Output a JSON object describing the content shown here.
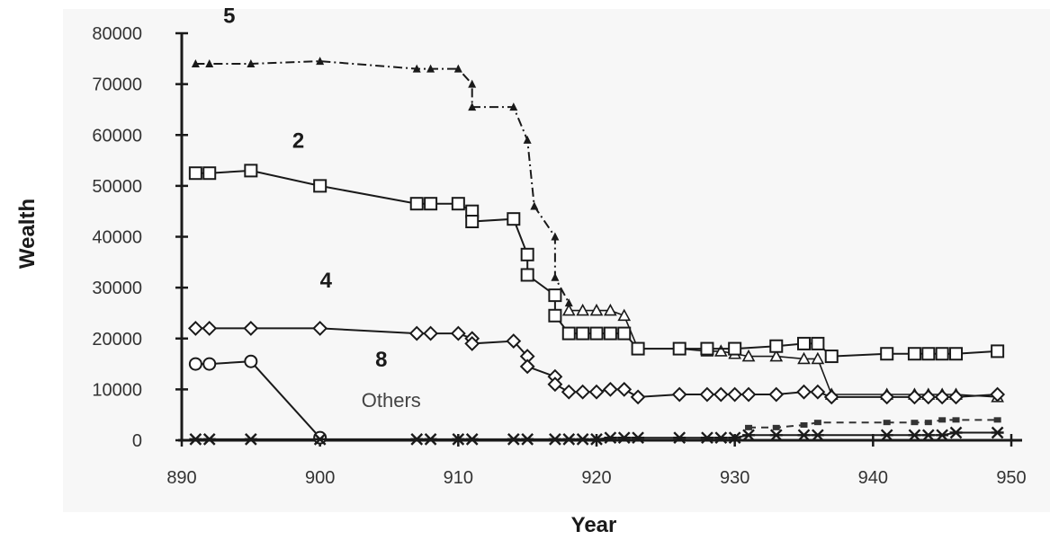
{
  "chart_data": {
    "type": "line",
    "title": "",
    "xlabel": "Year",
    "ylabel": "Wealth",
    "xlim": [
      890,
      950
    ],
    "ylim": [
      0,
      80000
    ],
    "x_ticks": [
      890,
      900,
      910,
      920,
      930,
      940,
      950
    ],
    "y_ticks": [
      0,
      10000,
      20000,
      30000,
      40000,
      50000,
      60000,
      70000,
      80000
    ],
    "grid": false,
    "legend": "none",
    "series": [
      {
        "name": "5",
        "marker": "triangle-filled",
        "color": "#1a1a1a",
        "points": [
          [
            891,
            74000
          ],
          [
            892,
            74000
          ],
          [
            895,
            74000
          ],
          [
            900,
            74500
          ],
          [
            907,
            73000
          ],
          [
            908,
            73000
          ],
          [
            910,
            73000
          ],
          [
            911,
            70000
          ],
          [
            911,
            65500
          ],
          [
            914,
            65500
          ],
          [
            915,
            59000
          ],
          [
            915.5,
            46000
          ],
          [
            917,
            40000
          ],
          [
            917,
            32000
          ],
          [
            918,
            27000
          ]
        ]
      },
      {
        "name": "",
        "marker": "triangle-open",
        "color": "#1a1a1a",
        "points": [
          [
            918,
            25500
          ],
          [
            919,
            25500
          ],
          [
            920,
            25500
          ],
          [
            921,
            25500
          ],
          [
            922,
            24500
          ],
          [
            923,
            18000
          ],
          [
            926,
            18000
          ],
          [
            928,
            17500
          ],
          [
            929,
            17500
          ],
          [
            930,
            17000
          ],
          [
            931,
            16500
          ],
          [
            933,
            16500
          ],
          [
            935,
            16000
          ],
          [
            936,
            16000
          ],
          [
            937,
            9000
          ],
          [
            941,
            9000
          ],
          [
            943,
            9000
          ],
          [
            944,
            9000
          ],
          [
            945,
            9000
          ],
          [
            946,
            9000
          ],
          [
            949,
            8500
          ]
        ]
      },
      {
        "name": "2",
        "marker": "square-open",
        "color": "#1a1a1a",
        "points": [
          [
            891,
            52500
          ],
          [
            892,
            52500
          ],
          [
            895,
            53000
          ],
          [
            900,
            50000
          ],
          [
            907,
            46500
          ],
          [
            908,
            46500
          ],
          [
            910,
            46500
          ],
          [
            911,
            45000
          ],
          [
            911,
            43000
          ],
          [
            914,
            43500
          ],
          [
            915,
            36500
          ],
          [
            915,
            32500
          ],
          [
            917,
            28500
          ],
          [
            917,
            24500
          ],
          [
            918,
            21000
          ],
          [
            919,
            21000
          ],
          [
            920,
            21000
          ],
          [
            921,
            21000
          ],
          [
            922,
            21000
          ],
          [
            923,
            18000
          ],
          [
            926,
            18000
          ],
          [
            928,
            18000
          ],
          [
            930,
            18000
          ],
          [
            933,
            18500
          ],
          [
            935,
            19000
          ],
          [
            936,
            19000
          ],
          [
            937,
            16500
          ],
          [
            941,
            17000
          ],
          [
            943,
            17000
          ],
          [
            944,
            17000
          ],
          [
            945,
            17000
          ],
          [
            946,
            17000
          ],
          [
            949,
            17500
          ]
        ]
      },
      {
        "name": "4",
        "marker": "diamond-open",
        "color": "#1a1a1a",
        "points": [
          [
            891,
            22000
          ],
          [
            892,
            22000
          ],
          [
            895,
            22000
          ],
          [
            900,
            22000
          ],
          [
            907,
            21000
          ],
          [
            908,
            21000
          ],
          [
            910,
            21000
          ],
          [
            911,
            20000
          ],
          [
            911,
            19000
          ],
          [
            914,
            19500
          ],
          [
            915,
            16500
          ],
          [
            915,
            14500
          ],
          [
            917,
            12500
          ],
          [
            917,
            11000
          ],
          [
            918,
            9500
          ],
          [
            919,
            9500
          ],
          [
            920,
            9500
          ],
          [
            921,
            10000
          ],
          [
            922,
            10000
          ],
          [
            923,
            8500
          ],
          [
            926,
            9000
          ],
          [
            928,
            9000
          ],
          [
            929,
            9000
          ],
          [
            930,
            9000
          ],
          [
            931,
            9000
          ],
          [
            933,
            9000
          ],
          [
            935,
            9500
          ],
          [
            936,
            9500
          ],
          [
            937,
            8500
          ],
          [
            941,
            8500
          ],
          [
            943,
            8500
          ],
          [
            944,
            8500
          ],
          [
            945,
            8500
          ],
          [
            946,
            8500
          ],
          [
            949,
            9000
          ]
        ]
      },
      {
        "name": "8",
        "marker": "circle-open",
        "color": "#1a1a1a",
        "points": [
          [
            891,
            15000
          ],
          [
            892,
            15000
          ],
          [
            895,
            15500
          ],
          [
            900,
            500
          ]
        ]
      },
      {
        "name": "",
        "marker": "asterisk",
        "color": "#1a1a1a",
        "points": [
          [
            891,
            200
          ],
          [
            892,
            200
          ],
          [
            895,
            200
          ],
          [
            900,
            200
          ],
          [
            907,
            200
          ],
          [
            908,
            200
          ],
          [
            910,
            200
          ],
          [
            911,
            200
          ],
          [
            914,
            200
          ],
          [
            915,
            200
          ],
          [
            917,
            200
          ],
          [
            918,
            200
          ],
          [
            919,
            200
          ],
          [
            920,
            200
          ],
          [
            921,
            500
          ],
          [
            922,
            500
          ],
          [
            923,
            500
          ],
          [
            926,
            500
          ],
          [
            928,
            500
          ],
          [
            929,
            500
          ],
          [
            930,
            500
          ],
          [
            931,
            1000
          ],
          [
            933,
            1000
          ],
          [
            935,
            1000
          ],
          [
            936,
            1000
          ],
          [
            941,
            1000
          ],
          [
            943,
            1000
          ],
          [
            944,
            1000
          ],
          [
            945,
            1000
          ],
          [
            946,
            1500
          ],
          [
            949,
            1500
          ]
        ]
      },
      {
        "name": "",
        "marker": "small-square-filled",
        "color": "#333333",
        "points": [
          [
            931,
            2500
          ],
          [
            933,
            2500
          ],
          [
            935,
            3000
          ],
          [
            936,
            3500
          ],
          [
            941,
            3500
          ],
          [
            943,
            3500
          ],
          [
            944,
            3500
          ],
          [
            945,
            4000
          ],
          [
            946,
            4000
          ],
          [
            949,
            4000
          ]
        ]
      }
    ],
    "annotations": [
      {
        "text": "5",
        "x": 893,
        "y": 82000,
        "class": "series-label"
      },
      {
        "text": "2",
        "x": 898,
        "y": 57500,
        "class": "series-label"
      },
      {
        "text": "4",
        "x": 900,
        "y": 30000,
        "class": "series-label"
      },
      {
        "text": "8",
        "x": 904,
        "y": 14500,
        "class": "series-label"
      },
      {
        "text": "Others",
        "x": 903,
        "y": 6500,
        "class": "others-label"
      }
    ]
  }
}
